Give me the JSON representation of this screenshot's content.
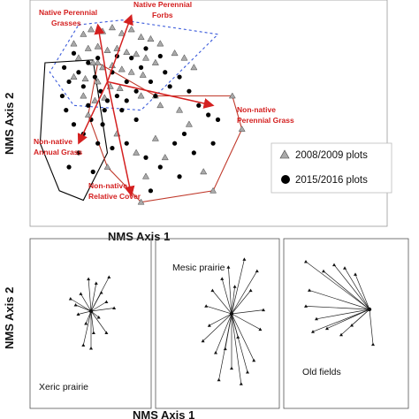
{
  "chart_data": [
    {
      "type": "scatter",
      "panel": "ordination",
      "xlabel": "NMS Axis 1",
      "ylabel": "NMS Axis 2",
      "legend": {
        "placement": "right",
        "entries": [
          {
            "label": "2008/2009 plots",
            "marker": "triangle",
            "color": "#a9a9a9"
          },
          {
            "label": "2015/2016 plots",
            "marker": "circle",
            "color": "#000000"
          }
        ]
      },
      "hulls": [
        {
          "style": "dashed",
          "color": "#3b5bdb",
          "points": [
            [
              -0.55,
              0.95
            ],
            [
              -0.1,
              1.0
            ],
            [
              0.9,
              0.85
            ],
            [
              0.1,
              0.05
            ],
            [
              -0.6,
              0.1
            ],
            [
              -0.85,
              0.45
            ]
          ]
        },
        {
          "style": "solid",
          "color": "#000000",
          "points": [
            [
              -0.9,
              0.55
            ],
            [
              -0.4,
              0.58
            ],
            [
              -0.25,
              -0.4
            ],
            [
              -0.5,
              -0.9
            ],
            [
              -0.75,
              -0.8
            ],
            [
              -0.95,
              -0.3
            ]
          ]
        },
        {
          "style": "solid",
          "color": "#c0392b",
          "points": [
            [
              -0.35,
              0.55
            ],
            [
              0.25,
              0.2
            ],
            [
              1.05,
              0.2
            ],
            [
              1.15,
              -0.15
            ],
            [
              0.85,
              -0.8
            ],
            [
              0.1,
              -0.92
            ],
            [
              -0.25,
              -0.55
            ],
            [
              -0.45,
              0.0
            ]
          ]
        }
      ],
      "vectors": [
        {
          "label": "Native Perennial Grasses",
          "x": -0.35,
          "y": 0.95
        },
        {
          "label": "Native Perennial Forbs",
          "x": 0.0,
          "y": 1.05
        },
        {
          "label": "Non-native Perennial Grass",
          "x": 0.85,
          "y": 0.1
        },
        {
          "label": "Non-native Annual Grass",
          "x": -0.55,
          "y": -0.3
        },
        {
          "label": "Non-native Relative Cover",
          "x": 0.0,
          "y": -0.85
        }
      ],
      "vector_origin": [
        -0.25,
        0.35
      ],
      "series": [
        {
          "name": "2008/2009 plots",
          "marker": "triangle",
          "values": [
            [
              -0.5,
              0.85
            ],
            [
              -0.42,
              0.9
            ],
            [
              -0.3,
              0.88
            ],
            [
              -0.2,
              0.92
            ],
            [
              -0.1,
              0.86
            ],
            [
              0.0,
              0.9
            ],
            [
              0.1,
              0.82
            ],
            [
              0.2,
              0.8
            ],
            [
              0.3,
              0.75
            ],
            [
              -0.45,
              0.7
            ],
            [
              -0.35,
              0.72
            ],
            [
              -0.25,
              0.68
            ],
            [
              -0.15,
              0.7
            ],
            [
              -0.05,
              0.66
            ],
            [
              0.05,
              0.64
            ],
            [
              0.15,
              0.6
            ],
            [
              0.25,
              0.55
            ],
            [
              -0.55,
              0.6
            ],
            [
              -0.4,
              0.55
            ],
            [
              -0.3,
              0.5
            ],
            [
              -0.2,
              0.52
            ],
            [
              -0.1,
              0.48
            ],
            [
              0.0,
              0.45
            ],
            [
              0.12,
              0.42
            ],
            [
              -0.6,
              0.4
            ],
            [
              -0.48,
              0.38
            ],
            [
              -0.35,
              0.35
            ],
            [
              -0.22,
              0.3
            ],
            [
              -0.12,
              0.28
            ],
            [
              -0.5,
              0.2
            ],
            [
              -0.38,
              0.15
            ],
            [
              -0.28,
              0.18
            ],
            [
              0.1,
              0.2
            ],
            [
              0.3,
              0.1
            ],
            [
              0.5,
              0.05
            ],
            [
              0.6,
              -0.1
            ],
            [
              0.25,
              -0.25
            ],
            [
              0.35,
              -0.45
            ],
            [
              0.05,
              -0.4
            ],
            [
              -0.15,
              -0.2
            ],
            [
              0.45,
              0.65
            ],
            [
              0.55,
              0.6
            ],
            [
              0.65,
              0.5
            ],
            [
              -0.6,
              0.75
            ],
            [
              0.75,
              -0.6
            ],
            [
              0.15,
              -0.65
            ]
          ]
        },
        {
          "name": "2015/2016 plots",
          "marker": "circle",
          "values": [
            [
              -0.7,
              0.5
            ],
            [
              -0.65,
              0.35
            ],
            [
              -0.72,
              0.2
            ],
            [
              -0.68,
              0.05
            ],
            [
              -0.6,
              -0.1
            ],
            [
              -0.55,
              0.45
            ],
            [
              -0.5,
              0.3
            ],
            [
              -0.45,
              0.1
            ],
            [
              -0.42,
              -0.05
            ],
            [
              -0.5,
              -0.2
            ],
            [
              -0.38,
              0.4
            ],
            [
              -0.32,
              0.25
            ],
            [
              -0.28,
              0.05
            ],
            [
              -0.3,
              -0.1
            ],
            [
              -0.2,
              0.45
            ],
            [
              -0.15,
              0.2
            ],
            [
              -0.1,
              0.05
            ],
            [
              -0.05,
              0.35
            ],
            [
              0.05,
              0.25
            ],
            [
              0.1,
              0.5
            ],
            [
              0.2,
              0.35
            ],
            [
              0.25,
              0.2
            ],
            [
              0.35,
              0.45
            ],
            [
              0.4,
              0.3
            ],
            [
              0.5,
              0.4
            ],
            [
              0.6,
              0.25
            ],
            [
              0.7,
              0.1
            ],
            [
              0.8,
              0.0
            ],
            [
              0.9,
              -0.05
            ],
            [
              0.55,
              -0.2
            ],
            [
              0.45,
              -0.3
            ],
            [
              0.65,
              -0.4
            ],
            [
              0.3,
              -0.55
            ],
            [
              0.15,
              -0.45
            ],
            [
              -0.05,
              -0.3
            ],
            [
              -0.2,
              -0.35
            ],
            [
              -0.35,
              -0.3
            ],
            [
              -0.55,
              -0.4
            ],
            [
              -0.65,
              -0.55
            ],
            [
              -0.4,
              -0.6
            ],
            [
              0.0,
              0.6
            ],
            [
              -0.15,
              0.62
            ],
            [
              0.15,
              0.7
            ],
            [
              -0.35,
              0.6
            ],
            [
              -0.6,
              0.65
            ],
            [
              0.3,
              0.62
            ],
            [
              0.85,
              -0.3
            ],
            [
              0.5,
              -0.65
            ],
            [
              0.2,
              -0.8
            ],
            [
              -0.45,
              0.55
            ],
            [
              -0.25,
              0.15
            ],
            [
              -0.05,
              0.15
            ],
            [
              0.05,
              -0.05
            ]
          ]
        }
      ]
    },
    {
      "type": "scatter",
      "panel": "Xeric prairie",
      "xlabel": "NMS Axis 1",
      "ylabel": "NMS Axis 2",
      "label": "Xeric prairie",
      "centroid": [
        0.0,
        0.0
      ],
      "values": [
        [
          0.35,
          0.55
        ],
        [
          0.1,
          0.45
        ],
        [
          -0.05,
          0.52
        ],
        [
          -0.2,
          0.28
        ],
        [
          -0.3,
          0.1
        ],
        [
          0.3,
          0.15
        ],
        [
          -0.25,
          -0.05
        ],
        [
          0.15,
          -0.1
        ],
        [
          -0.1,
          -0.2
        ],
        [
          0.05,
          -0.35
        ],
        [
          0.0,
          -0.6
        ],
        [
          -0.15,
          -0.55
        ],
        [
          0.3,
          -0.35
        ],
        [
          0.45,
          0.05
        ],
        [
          -0.4,
          0.2
        ],
        [
          0.2,
          0.3
        ]
      ]
    },
    {
      "type": "scatter",
      "panel": "Mesic prairie",
      "label": "Mesic prairie",
      "centroid": [
        0.0,
        0.0
      ],
      "values": [
        [
          0.4,
          0.55
        ],
        [
          0.2,
          0.7
        ],
        [
          -0.05,
          0.6
        ],
        [
          -0.3,
          0.3
        ],
        [
          -0.4,
          0.1
        ],
        [
          -0.35,
          -0.15
        ],
        [
          -0.1,
          -0.45
        ],
        [
          0.0,
          -0.7
        ],
        [
          0.15,
          -0.9
        ],
        [
          -0.2,
          -0.85
        ],
        [
          0.35,
          -0.6
        ],
        [
          0.45,
          -0.2
        ],
        [
          0.5,
          0.05
        ],
        [
          0.3,
          0.3
        ],
        [
          -0.25,
          -0.5
        ],
        [
          0.1,
          -0.3
        ],
        [
          0.25,
          -0.75
        ],
        [
          -0.45,
          -0.35
        ],
        [
          0.05,
          0.35
        ],
        [
          -0.15,
          0.45
        ]
      ]
    },
    {
      "type": "scatter",
      "panel": "Old fields",
      "label": "Old fields",
      "centroid": [
        0.45,
        0.0
      ],
      "values": [
        [
          -0.45,
          0.75
        ],
        [
          -0.2,
          0.6
        ],
        [
          -0.05,
          0.7
        ],
        [
          0.1,
          0.65
        ],
        [
          0.25,
          0.55
        ],
        [
          -0.4,
          0.3
        ],
        [
          -0.45,
          0.05
        ],
        [
          -0.3,
          -0.15
        ],
        [
          -0.15,
          -0.3
        ],
        [
          0.05,
          -0.4
        ],
        [
          0.2,
          -0.25
        ],
        [
          0.5,
          -0.55
        ],
        [
          -0.35,
          -0.35
        ]
      ]
    }
  ]
}
